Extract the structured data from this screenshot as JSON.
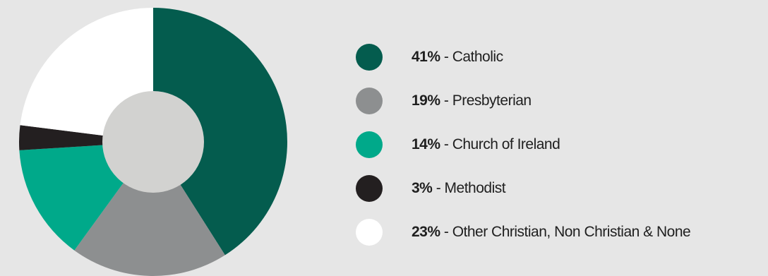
{
  "chart_data": {
    "type": "pie",
    "donut": true,
    "legend_position": "right",
    "series": [
      {
        "name": "Catholic",
        "label": "41%",
        "value": 41,
        "color": "#045c4e"
      },
      {
        "name": "Presbyterian",
        "label": "19%",
        "value": 19,
        "color": "#8d8f90"
      },
      {
        "name": "Church of Ireland",
        "label": "14%",
        "value": 14,
        "color": "#00a98a"
      },
      {
        "name": "Methodist",
        "label": "3%",
        "value": 3,
        "color": "#231f20"
      },
      {
        "name": "Other Christian, Non Christian & None",
        "label": "23%",
        "value": 23,
        "color": "#ffffff"
      }
    ],
    "center_color": "#d2d2d0",
    "separator": " - "
  }
}
